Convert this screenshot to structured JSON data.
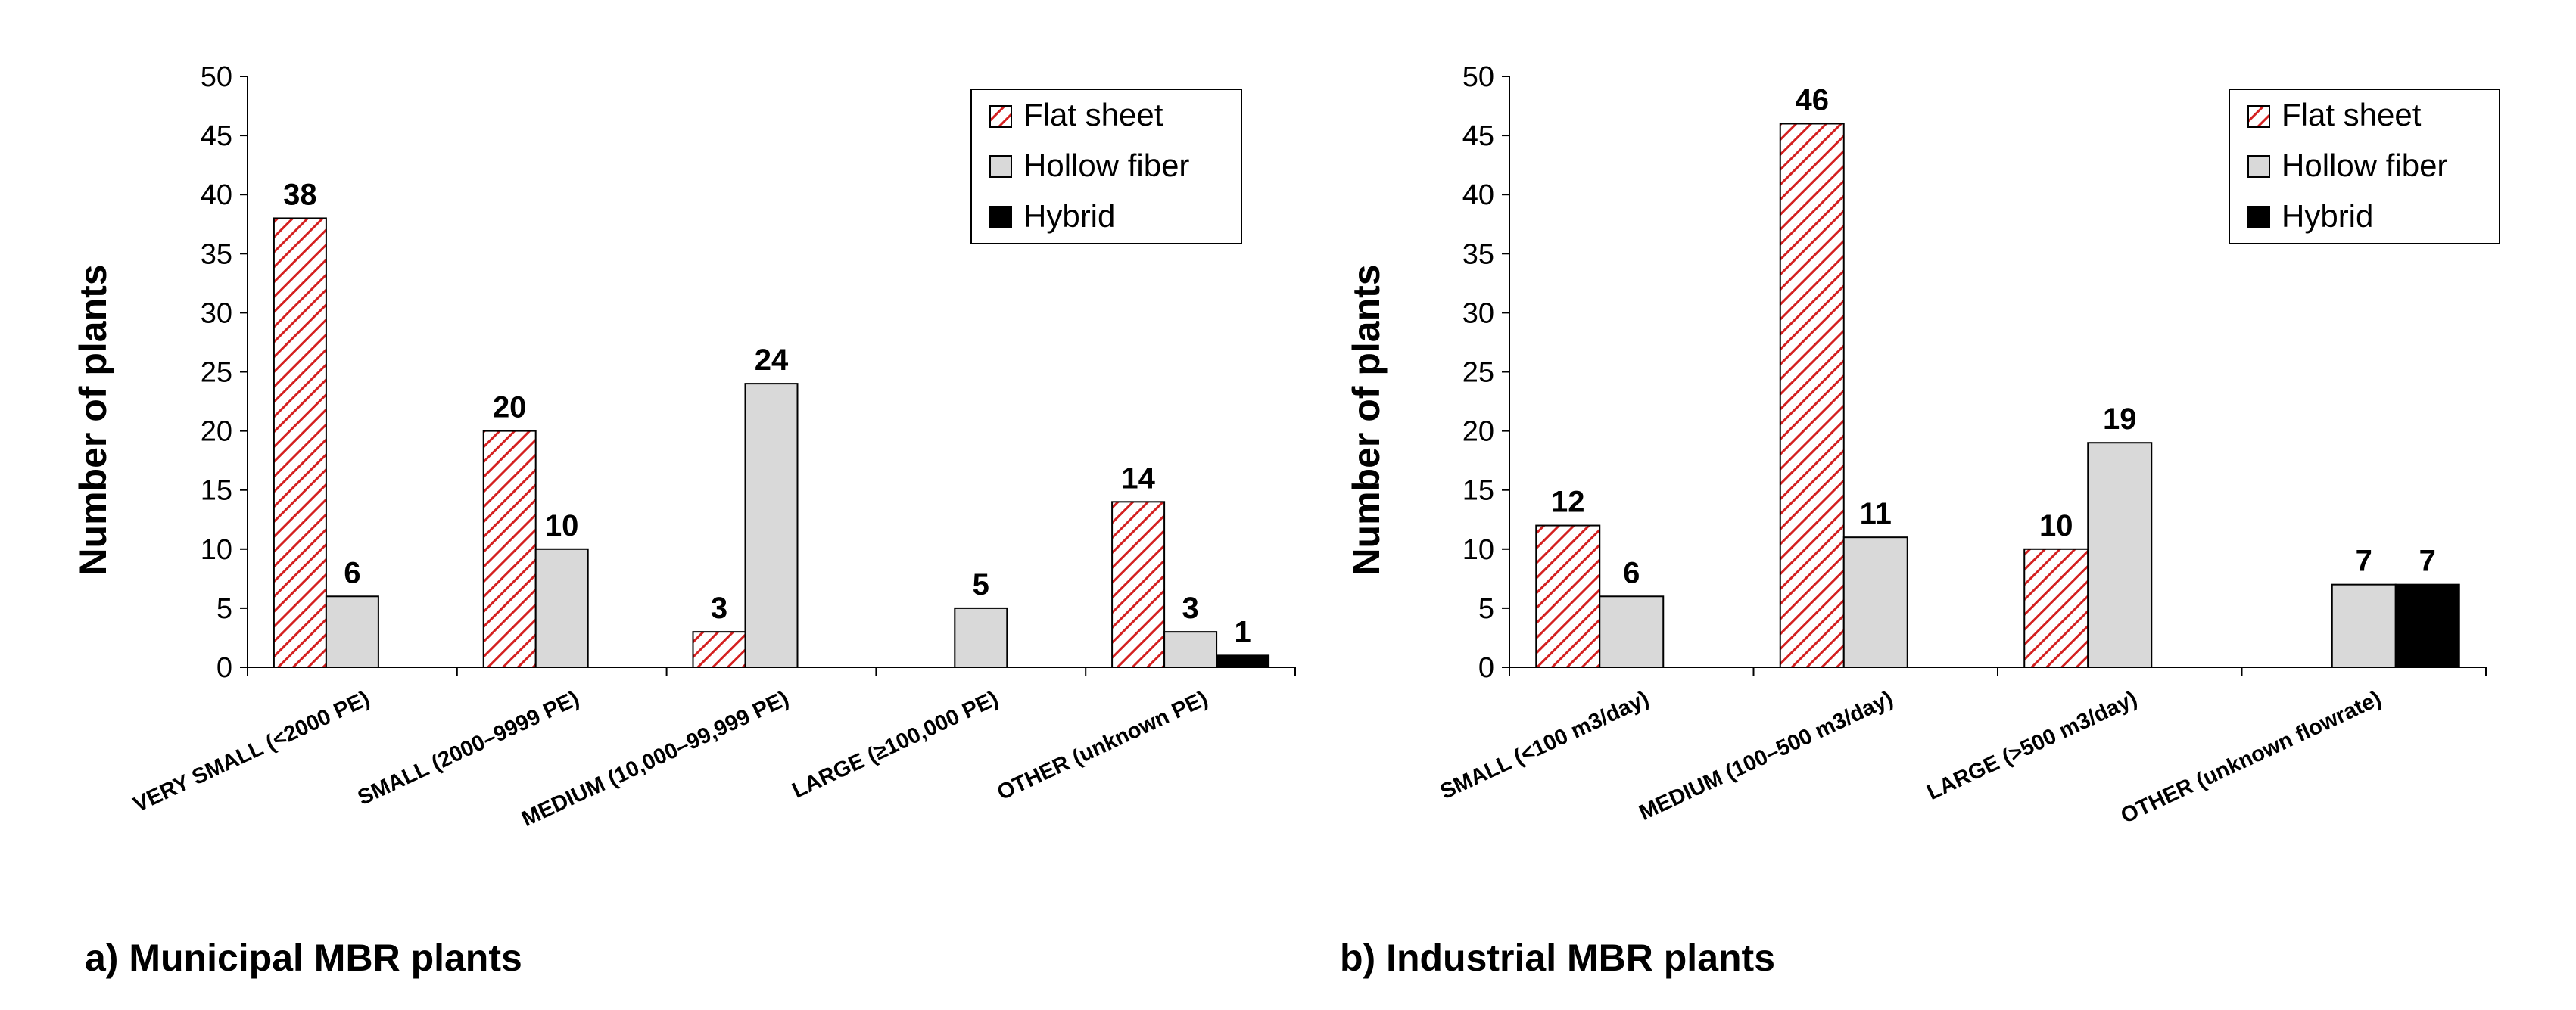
{
  "colors": {
    "flat_sheet_stroke": "#d42020",
    "hollow_fiber_fill": "#d9d9d9",
    "hybrid_fill": "#000000",
    "axis": "#000000",
    "background": "#ffffff"
  },
  "chart_data": [
    {
      "type": "bar",
      "title": "",
      "caption": "a) Municipal MBR plants",
      "xlabel": "",
      "ylabel": "Number of plants",
      "ylim": [
        0,
        50
      ],
      "yticks": [
        "0",
        "5",
        "10",
        "15",
        "20",
        "25",
        "30",
        "35",
        "40",
        "45",
        "50"
      ],
      "grid": false,
      "legend_position": "top-right",
      "categories": [
        "VERY SMALL (<2000 PE)",
        "SMALL  (2000–9999 PE)",
        "MEDIUM (10,000–99,999 PE)",
        "LARGE (≥100,000 PE)",
        "OTHER (unknown PE)"
      ],
      "series": [
        {
          "name": "Flat sheet",
          "pattern": "hatched-red",
          "values": [
            38,
            20,
            3,
            null,
            14
          ],
          "labels": [
            "38",
            "20",
            "3",
            "",
            "14"
          ]
        },
        {
          "name": "Hollow fiber",
          "pattern": "grey",
          "values": [
            6,
            10,
            24,
            5,
            3
          ],
          "labels": [
            "6",
            "10",
            "24",
            "5",
            "3"
          ]
        },
        {
          "name": "Hybrid",
          "pattern": "black",
          "values": [
            null,
            null,
            null,
            null,
            1
          ],
          "labels": [
            "",
            "",
            "",
            "",
            "1"
          ]
        }
      ]
    },
    {
      "type": "bar",
      "title": "",
      "caption": "b) Industrial MBR plants",
      "xlabel": "",
      "ylabel": "Number of plants",
      "ylim": [
        0,
        50
      ],
      "yticks": [
        "0",
        "5",
        "10",
        "15",
        "20",
        "25",
        "30",
        "35",
        "40",
        "45",
        "50"
      ],
      "grid": false,
      "legend_position": "top-right",
      "categories": [
        "SMALL (<100 m3/day)",
        "MEDIUM (100–500 m3/day)",
        "LARGE (>500 m3/day)",
        "OTHER (unknown flowrate)"
      ],
      "series": [
        {
          "name": "Flat sheet",
          "pattern": "hatched-red",
          "values": [
            12,
            46,
            10,
            null
          ],
          "labels": [
            "12",
            "46",
            "10",
            ""
          ]
        },
        {
          "name": "Hollow fiber",
          "pattern": "grey",
          "values": [
            6,
            11,
            19,
            7
          ],
          "labels": [
            "6",
            "11",
            "19",
            "7"
          ]
        },
        {
          "name": "Hybrid",
          "pattern": "black",
          "values": [
            null,
            null,
            null,
            7
          ],
          "labels": [
            "",
            "",
            "",
            "7"
          ]
        }
      ]
    }
  ]
}
